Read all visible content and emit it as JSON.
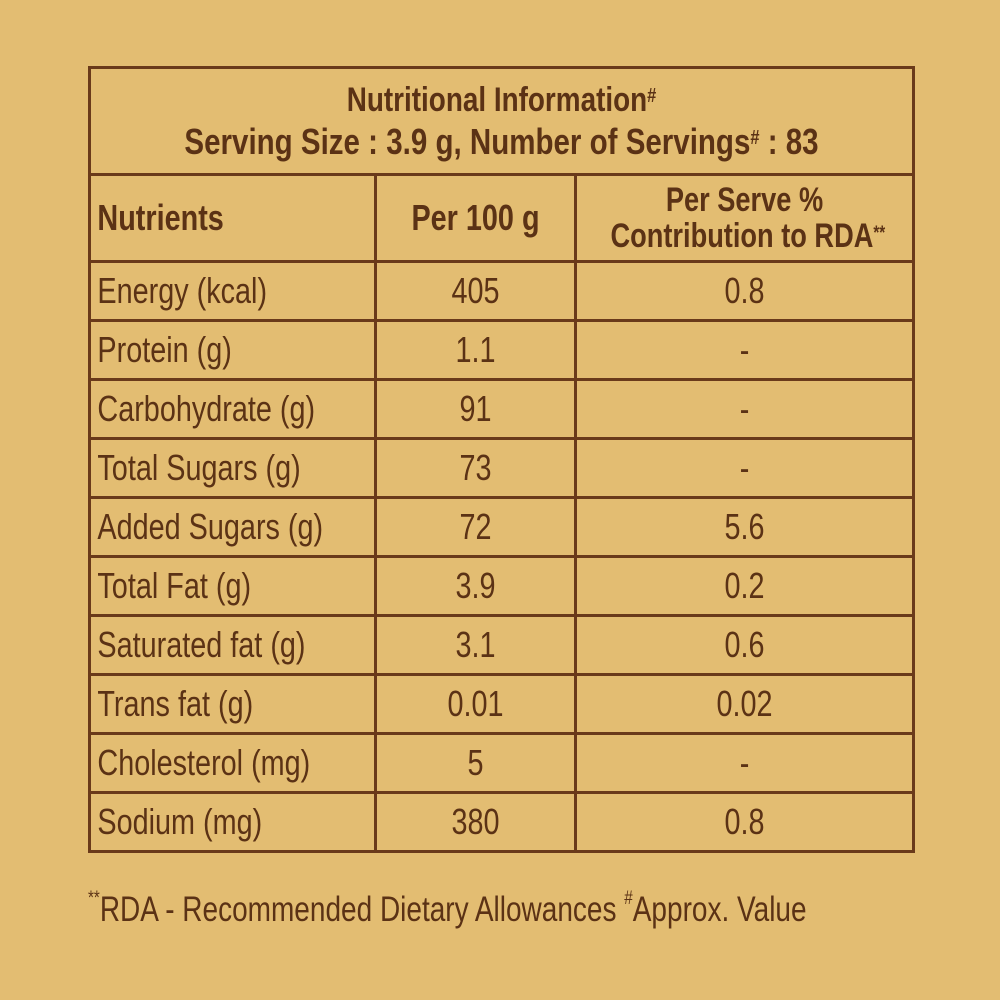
{
  "title": {
    "line1": "Nutritional Information",
    "line1_mark": "#",
    "line2_a": "Serving Size : 3.9 g, Number of Servings",
    "line2_mark": "#",
    "line2_b": " : 83"
  },
  "headers": {
    "nutrients": "Nutrients",
    "per100": "Per 100 g",
    "rda_line1": "Per Serve %",
    "rda_line2": "Contribution to RDA",
    "rda_mark": "**"
  },
  "rows": [
    {
      "name": "Energy (kcal)",
      "per100": "405",
      "rda": "0.8"
    },
    {
      "name": "Protein (g)",
      "per100": "1.1",
      "rda": "-"
    },
    {
      "name": "Carbohydrate (g)",
      "per100": "91",
      "rda": "-"
    },
    {
      "name": "Total Sugars (g)",
      "per100": "73",
      "rda": "-"
    },
    {
      "name": "Added Sugars (g)",
      "per100": "72",
      "rda": "5.6"
    },
    {
      "name": "Total Fat (g)",
      "per100": "3.9",
      "rda": "0.2"
    },
    {
      "name": "Saturated fat (g)",
      "per100": "3.1",
      "rda": "0.6"
    },
    {
      "name": "Trans fat (g)",
      "per100": "0.01",
      "rda": "0.02"
    },
    {
      "name": "Cholesterol (mg)",
      "per100": "5",
      "rda": "-"
    },
    {
      "name": "Sodium (mg)",
      "per100": "380",
      "rda": "0.8"
    }
  ],
  "footnote": {
    "mark1": "**",
    "text1": "RDA - Recommended Dietary Allowances ",
    "mark2": "#",
    "text2": "Approx. Value"
  },
  "colors": {
    "background": "#e3bd72",
    "text": "#5b3215",
    "border": "#6a3a1a"
  }
}
